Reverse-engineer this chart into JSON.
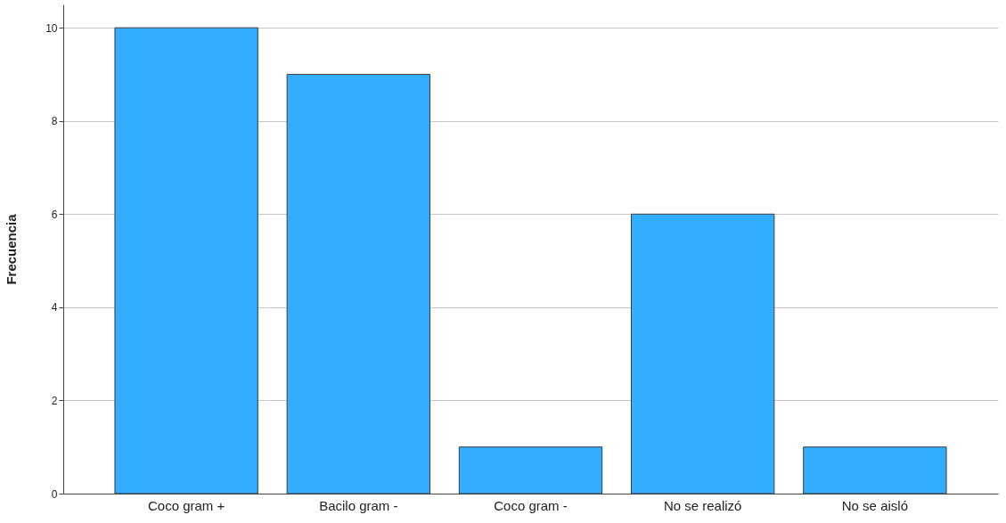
{
  "chart_data": {
    "type": "bar",
    "ylabel": "Frecuencia",
    "categories": [
      "Coco gram +",
      "Bacilo gram -",
      "Coco gram -",
      "No se realizó",
      "No se aisló"
    ],
    "values": [
      10,
      9,
      1,
      6,
      1
    ],
    "color": "#33adff",
    "ylim": [
      0,
      10.5
    ],
    "yticks": [
      0,
      2,
      4,
      6,
      8,
      10
    ],
    "grid": "y"
  }
}
